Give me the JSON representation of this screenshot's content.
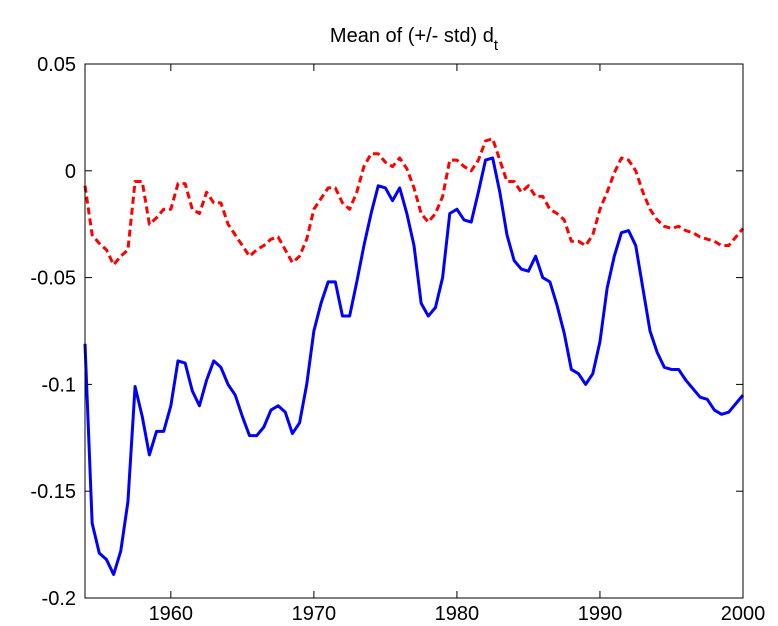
{
  "chart_data": {
    "type": "line",
    "title": "Mean of (+/- std) d",
    "title_subscript": "t",
    "x": [
      1954,
      1954.5,
      1955,
      1955.5,
      1956,
      1956.5,
      1957,
      1957.5,
      1958,
      1958.5,
      1959,
      1959.5,
      1960,
      1960.5,
      1961,
      1961.5,
      1962,
      1962.5,
      1963,
      1963.5,
      1964,
      1964.5,
      1965,
      1965.5,
      1966,
      1966.5,
      1967,
      1967.5,
      1968,
      1968.5,
      1969,
      1969.5,
      1970,
      1970.5,
      1971,
      1971.5,
      1972,
      1972.5,
      1973,
      1973.5,
      1974,
      1974.5,
      1975,
      1975.5,
      1976,
      1976.5,
      1977,
      1977.5,
      1978,
      1978.5,
      1979,
      1979.5,
      1980,
      1980.5,
      1981,
      1981.5,
      1982,
      1982.5,
      1983,
      1983.5,
      1984,
      1984.5,
      1985,
      1985.5,
      1986,
      1986.5,
      1987,
      1987.5,
      1988,
      1988.5,
      1989,
      1989.5,
      1990,
      1990.5,
      1991,
      1991.5,
      1992,
      1992.5,
      1993,
      1993.5,
      1994,
      1994.5,
      1995,
      1995.5,
      1996,
      1996.5,
      1997,
      1997.5,
      1998,
      1998.5,
      1999,
      1999.5,
      2000
    ],
    "series": [
      {
        "color": "#0000ff",
        "dash": false,
        "values": [
          -0.081,
          -0.165,
          -0.179,
          -0.182,
          -0.189,
          -0.178,
          -0.155,
          -0.101,
          -0.115,
          -0.133,
          -0.122,
          -0.122,
          -0.11,
          -0.089,
          -0.09,
          -0.103,
          -0.11,
          -0.098,
          -0.089,
          -0.092,
          -0.1,
          -0.105,
          -0.115,
          -0.124,
          -0.124,
          -0.12,
          -0.112,
          -0.11,
          -0.113,
          -0.123,
          -0.118,
          -0.1,
          -0.075,
          -0.062,
          -0.052,
          -0.052,
          -0.068,
          -0.068,
          -0.052,
          -0.035,
          -0.02,
          -0.007,
          -0.008,
          -0.014,
          -0.008,
          -0.02,
          -0.035,
          -0.062,
          -0.068,
          -0.064,
          -0.05,
          -0.02,
          -0.018,
          -0.023,
          -0.024,
          -0.01,
          0.005,
          0.006,
          -0.01,
          -0.03,
          -0.042,
          -0.046,
          -0.047,
          -0.04,
          -0.05,
          -0.052,
          -0.063,
          -0.076,
          -0.093,
          -0.095,
          -0.1,
          -0.095,
          -0.08,
          -0.055,
          -0.04,
          -0.029,
          -0.028,
          -0.035,
          -0.055,
          -0.075,
          -0.085,
          -0.092,
          -0.093,
          -0.093,
          -0.098,
          -0.102,
          -0.106,
          -0.107,
          -0.112,
          -0.114,
          -0.113,
          -0.109,
          -0.105
        ]
      },
      {
        "color": "#ff0000",
        "dash": true,
        "values": [
          -0.007,
          -0.03,
          -0.034,
          -0.037,
          -0.044,
          -0.04,
          -0.037,
          -0.005,
          -0.005,
          -0.025,
          -0.022,
          -0.018,
          -0.018,
          -0.006,
          -0.006,
          -0.018,
          -0.02,
          -0.01,
          -0.015,
          -0.015,
          -0.025,
          -0.03,
          -0.035,
          -0.04,
          -0.037,
          -0.035,
          -0.032,
          -0.031,
          -0.037,
          -0.043,
          -0.04,
          -0.032,
          -0.018,
          -0.013,
          -0.008,
          -0.008,
          -0.015,
          -0.018,
          -0.01,
          0.002,
          0.008,
          0.008,
          0.004,
          0.002,
          0.006,
          0.001,
          -0.008,
          -0.02,
          -0.024,
          -0.02,
          -0.012,
          0.005,
          0.005,
          0.002,
          0.0,
          0.005,
          0.014,
          0.015,
          0.005,
          -0.005,
          -0.005,
          -0.01,
          -0.007,
          -0.012,
          -0.012,
          -0.018,
          -0.02,
          -0.023,
          -0.033,
          -0.033,
          -0.035,
          -0.03,
          -0.018,
          -0.01,
          -0.001,
          0.006,
          0.005,
          0.0,
          -0.01,
          -0.018,
          -0.023,
          -0.026,
          -0.027,
          -0.026,
          -0.028,
          -0.029,
          -0.031,
          -0.032,
          -0.033,
          -0.035,
          -0.035,
          -0.031,
          -0.027
        ]
      }
    ],
    "xlim": [
      1954,
      2000
    ],
    "xticks": [
      1960,
      1970,
      1980,
      1990,
      2000
    ],
    "ylim": [
      -0.2,
      0.05
    ],
    "yticks": [
      -0.2,
      -0.15,
      -0.1,
      -0.05,
      0,
      0.05
    ]
  }
}
